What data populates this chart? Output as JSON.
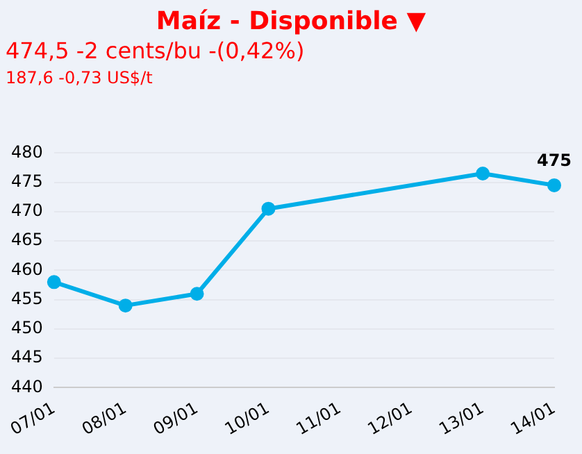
{
  "chart_data": {
    "type": "line",
    "title": "Maíz - Disponible ▼",
    "subtitle": "474,5 -2 cents/bu -(0,42%)\n187,6 -0,73 US$/t",
    "categories": [
      "07/01",
      "08/01",
      "09/01",
      "10/01",
      "11/01",
      "12/01",
      "13/01",
      "14/01"
    ],
    "series": [
      {
        "color": "#00aee8",
        "values": [
          458,
          454,
          456,
          470.5,
          null,
          null,
          476.5,
          474.5
        ],
        "value_labels": [
          null,
          null,
          null,
          null,
          null,
          null,
          null,
          "475"
        ]
      }
    ],
    "ylim": [
      440,
      480
    ],
    "yticks": [
      440,
      445,
      450,
      455,
      460,
      465,
      470,
      475,
      480
    ],
    "grid": "y",
    "legend": false,
    "marker": "circle",
    "line_style": "solid"
  }
}
